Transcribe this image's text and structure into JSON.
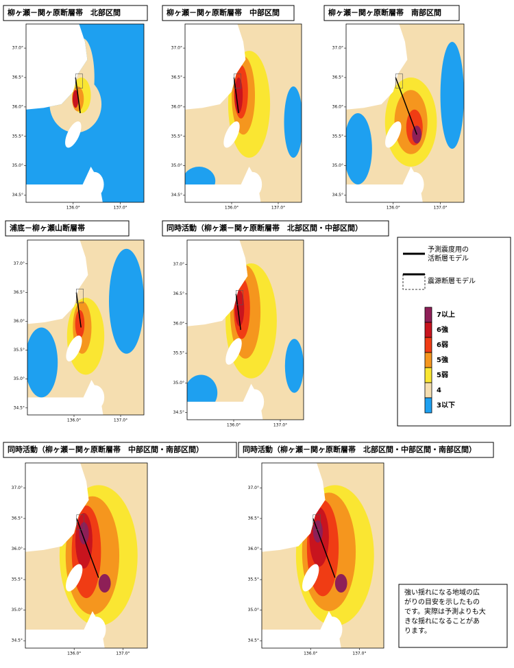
{
  "panels": [
    {
      "title": "柳ヶ瀬－関ヶ原断層帯　北部区間"
    },
    {
      "title": "柳ヶ瀬－関ヶ原断層帯　中部区間"
    },
    {
      "title": "柳ヶ瀬－関ヶ原断層帯　南部区間"
    },
    {
      "title": "浦底－柳ヶ瀬山断層帯"
    },
    {
      "title": "同時活動（柳ヶ瀬－関ヶ原断層帯　北部区間・中部区間）"
    },
    {
      "title": "同時活動（柳ヶ瀬－関ヶ原断層帯　中部区間・南部区間）"
    },
    {
      "title": "同時活動（柳ヶ瀬－関ヶ原断層帯　北部区間・中部区間・南部区間）"
    }
  ],
  "axes": {
    "lat_ticks": [
      "37.0°",
      "36.5°",
      "36.0°",
      "35.5°",
      "35.0°",
      "34.5°"
    ],
    "lon_ticks": [
      "136.0°",
      "137.0°"
    ]
  },
  "legend": {
    "fault_model": [
      "予測震度用の",
      "活断層モデル"
    ],
    "source_model": "震源断層モデル",
    "items": [
      {
        "label": "7以上",
        "color": "#8e1f57"
      },
      {
        "label": "6強",
        "color": "#c8141e"
      },
      {
        "label": "6弱",
        "color": "#f03c14"
      },
      {
        "label": "5強",
        "color": "#f5961e"
      },
      {
        "label": "5弱",
        "color": "#fae632"
      },
      {
        "label": "4",
        "color": "#f5deb0"
      },
      {
        "label": "3以下",
        "color": "#1ea0f0"
      }
    ]
  },
  "note": [
    "強い揺れになる地域の広",
    "がりの目安を示したもの",
    "です。実際は予測よりも大",
    "きな揺れになることがあ",
    "ります。"
  ]
}
